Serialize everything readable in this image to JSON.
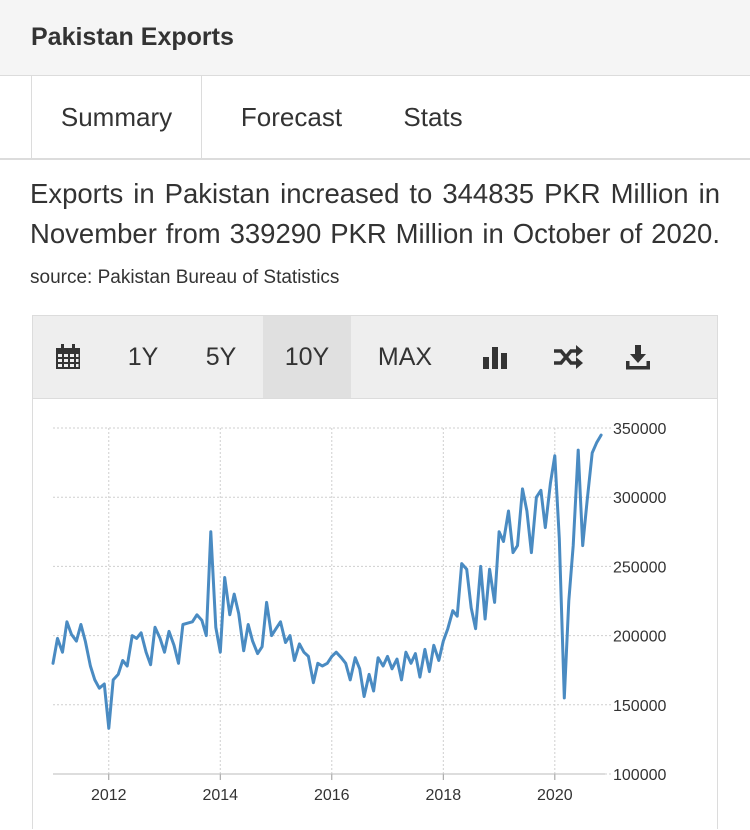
{
  "panel": {
    "title": "Pakistan Exports"
  },
  "tabs": [
    {
      "label": "Summary",
      "active": true
    },
    {
      "label": "Forecast",
      "active": false
    },
    {
      "label": "Stats",
      "active": false
    }
  ],
  "summary": {
    "text": "Exports in Pakistan increased to 344835 PKR Million in November from 339290 PKR Million in October of 2020.",
    "source": "source: Pakistan Bureau of Statistics"
  },
  "toolbar": {
    "calendar_icon": "calendar-icon",
    "ranges": [
      "1Y",
      "5Y",
      "10Y",
      "MAX"
    ],
    "active_range": "10Y",
    "bar_chart_icon": "bar-chart-icon",
    "compare_icon": "shuffle-icon",
    "download_icon": "download-icon"
  },
  "colors": {
    "line": "#4a8bc2",
    "grid": "#cfcfcf",
    "axis_text": "#333333"
  },
  "chart_data": {
    "type": "line",
    "y_ticks": [
      "350000",
      "300000",
      "250000",
      "200000",
      "150000",
      "100000"
    ],
    "x_ticks": [
      "2012",
      "2014",
      "2016",
      "2018",
      "2020"
    ],
    "ylim": [
      100000,
      350000
    ],
    "xlim": [
      2011.0,
      2020.9
    ],
    "grid": true,
    "series": [
      {
        "x": [
          2011.0,
          2011.08,
          2011.17,
          2011.25,
          2011.33,
          2011.42,
          2011.5,
          2011.58,
          2011.67,
          2011.75,
          2011.83,
          2011.92,
          2012.0,
          2012.08,
          2012.17,
          2012.25,
          2012.33,
          2012.42,
          2012.5,
          2012.58,
          2012.67,
          2012.75,
          2012.83,
          2012.92,
          2013.0,
          2013.08,
          2013.17,
          2013.25,
          2013.33,
          2013.42,
          2013.5,
          2013.58,
          2013.67,
          2013.75,
          2013.83,
          2013.92,
          2014.0,
          2014.08,
          2014.17,
          2014.25,
          2014.33,
          2014.42,
          2014.5,
          2014.58,
          2014.67,
          2014.75,
          2014.83,
          2014.92,
          2015.0,
          2015.08,
          2015.17,
          2015.25,
          2015.33,
          2015.42,
          2015.5,
          2015.58,
          2015.67,
          2015.75,
          2015.83,
          2015.92,
          2016.0,
          2016.08,
          2016.17,
          2016.25,
          2016.33,
          2016.42,
          2016.5,
          2016.58,
          2016.67,
          2016.75,
          2016.83,
          2016.92,
          2017.0,
          2017.08,
          2017.17,
          2017.25,
          2017.33,
          2017.42,
          2017.5,
          2017.58,
          2017.67,
          2017.75,
          2017.83,
          2017.92,
          2018.0,
          2018.08,
          2018.17,
          2018.25,
          2018.33,
          2018.42,
          2018.5,
          2018.58,
          2018.67,
          2018.75,
          2018.83,
          2018.92,
          2019.0,
          2019.08,
          2019.17,
          2019.25,
          2019.33,
          2019.42,
          2019.5,
          2019.58,
          2019.67,
          2019.75,
          2019.83,
          2019.92,
          2020.0,
          2020.08,
          2020.17,
          2020.25,
          2020.33,
          2020.42,
          2020.5,
          2020.58,
          2020.67,
          2020.75,
          2020.83
        ],
        "values": [
          180000,
          198000,
          188000,
          210000,
          201000,
          196000,
          208000,
          196000,
          178000,
          168000,
          162000,
          165000,
          133000,
          168000,
          172000,
          182000,
          178000,
          200000,
          198000,
          202000,
          188000,
          179000,
          206000,
          198000,
          188000,
          203000,
          193000,
          180000,
          208000,
          209000,
          210000,
          215000,
          211000,
          200000,
          275000,
          206000,
          188000,
          242000,
          215000,
          230000,
          216000,
          189000,
          208000,
          196000,
          187000,
          192000,
          224000,
          200000,
          205000,
          210000,
          195000,
          200000,
          182000,
          194000,
          188000,
          185000,
          166000,
          180000,
          178000,
          180000,
          185000,
          188000,
          184000,
          180000,
          168000,
          184000,
          176000,
          156000,
          172000,
          160000,
          184000,
          178000,
          185000,
          176000,
          183000,
          168000,
          188000,
          180000,
          187000,
          170000,
          190000,
          174000,
          193000,
          182000,
          196000,
          205000,
          218000,
          214000,
          252000,
          248000,
          220000,
          205000,
          250000,
          212000,
          248000,
          224000,
          275000,
          268000,
          290000,
          260000,
          265000,
          306000,
          290000,
          260000,
          300000,
          305000,
          278000,
          310000,
          330000,
          270000,
          155000,
          225000,
          265000,
          334000,
          265000,
          298000,
          332000,
          339290,
          344835
        ]
      }
    ]
  }
}
